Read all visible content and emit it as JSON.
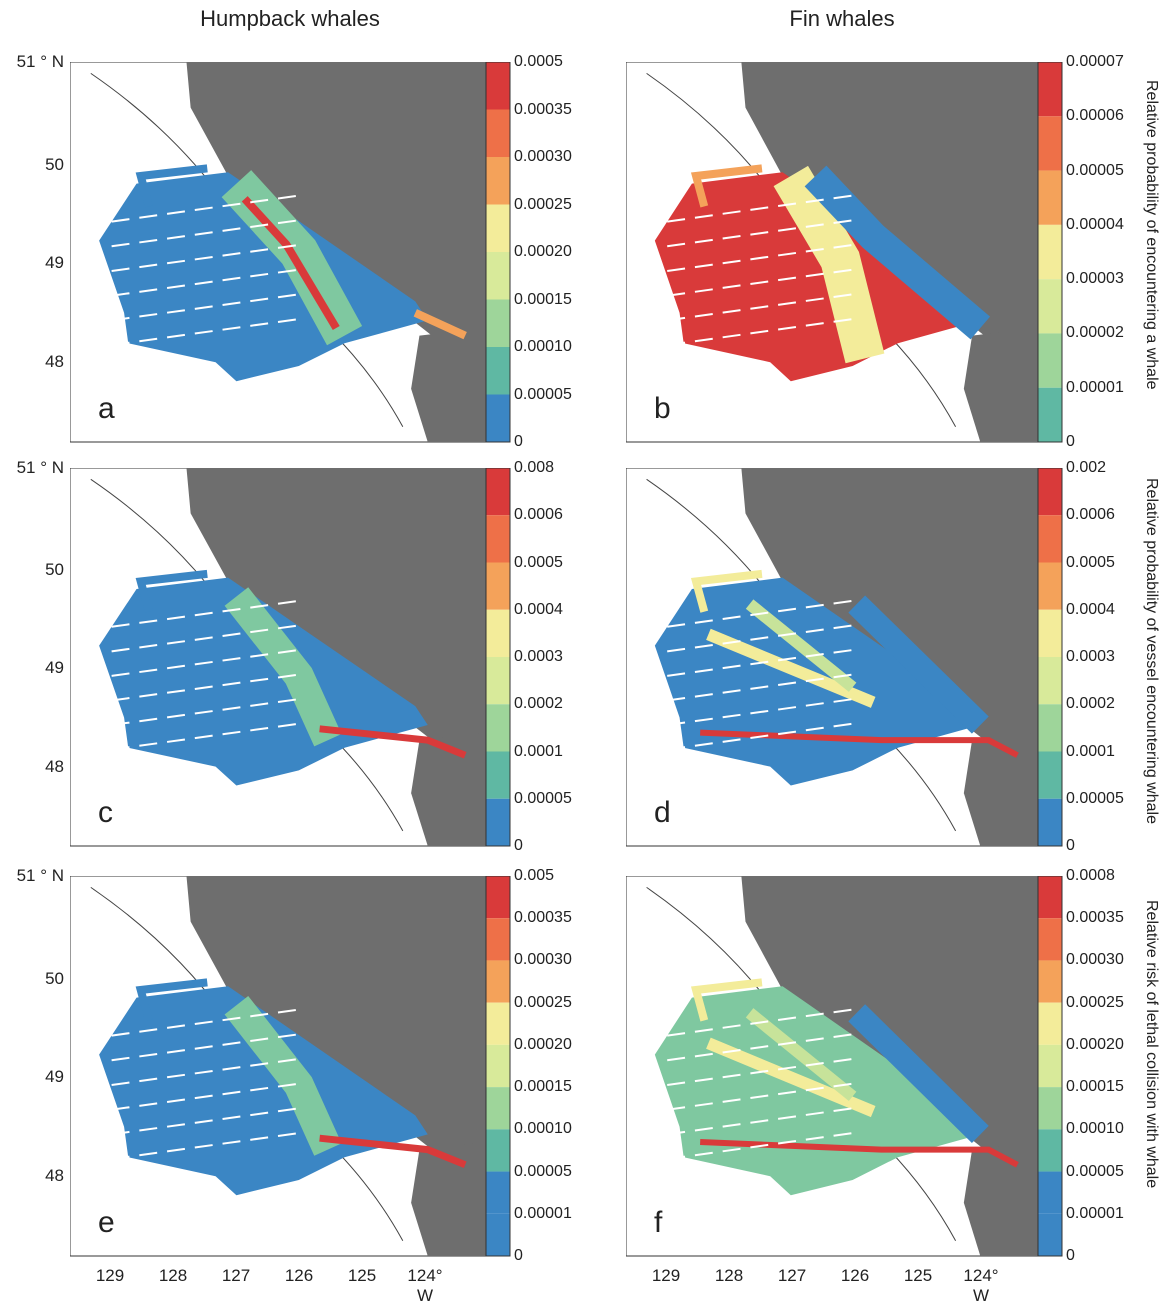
{
  "column_titles": {
    "left": "Humpback whales",
    "right": "Fin whales"
  },
  "latitude_ticks": {
    "top": "51 ° N",
    "t50": "50",
    "t49": "49",
    "t48": "48"
  },
  "longitude_ticks": {
    "left": [
      "129",
      "128",
      "127",
      "126",
      "125",
      "124° W"
    ],
    "right": [
      "129",
      "128",
      "127",
      "126",
      "125",
      "124° W"
    ]
  },
  "row_titles": {
    "row1": "Relative probability of encountering a whale",
    "row2": "Relative probability of vessel encountering whale",
    "row3": "Relative risk of lethal collision with whale"
  },
  "panels": [
    {
      "letter": "a",
      "colorbar": [
        "0.0005",
        "0.00035",
        "0.00030",
        "0.00025",
        "0.00020",
        "0.00015",
        "0.00010",
        "0.00005",
        "0"
      ]
    },
    {
      "letter": "b",
      "colorbar": [
        "0.00007",
        "0.00006",
        "0.00005",
        "0.00004",
        "0.00003",
        "0.00002",
        "0.00001",
        "0"
      ]
    },
    {
      "letter": "c",
      "colorbar": [
        "0.008",
        "0.0006",
        "0.0005",
        "0.0004",
        "0.0003",
        "0.0002",
        "0.0001",
        "0.00005",
        "0"
      ]
    },
    {
      "letter": "d",
      "colorbar": [
        "0.002",
        "0.0006",
        "0.0005",
        "0.0004",
        "0.0003",
        "0.0002",
        "0.0001",
        "0.00005",
        "0"
      ]
    },
    {
      "letter": "e",
      "colorbar": [
        "0.005",
        "0.00035",
        "0.00030",
        "0.00025",
        "0.00020",
        "0.00015",
        "0.00010",
        "0.00005",
        "0.00001",
        "0"
      ]
    },
    {
      "letter": "f",
      "colorbar": [
        "0.0008",
        "0.00035",
        "0.00030",
        "0.00025",
        "0.00020",
        "0.00015",
        "0.00010",
        "0.00005",
        "0.00001",
        "0"
      ]
    }
  ],
  "colors": {
    "land": "#6e6e6e",
    "low": "#3b86c4",
    "mid": "#7fc8a0",
    "yellow": "#f3ec9a",
    "orange": "#f4a25a",
    "red": "#d93a3a"
  }
}
